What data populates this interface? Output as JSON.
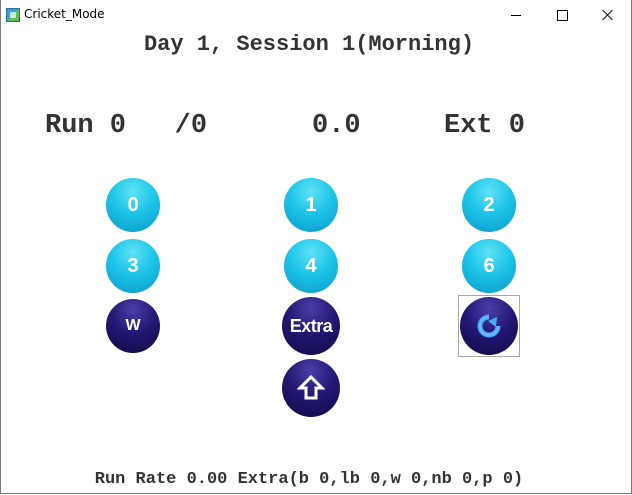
{
  "window": {
    "title": "Cricket_Mode",
    "icon": "app-icon"
  },
  "session": {
    "title": "Day 1, Session 1(Morning)"
  },
  "score": {
    "runs_label": "Run 0   /0",
    "overs_label": "0.0",
    "extras_label": "Ext 0"
  },
  "buttons": {
    "run_0": "0",
    "run_1": "1",
    "run_2": "2",
    "run_3": "3",
    "run_4": "4",
    "run_6": "6",
    "wicket": "W",
    "extra": "Extra",
    "undo_icon": "undo-icon",
    "upload_icon": "upload-icon"
  },
  "footer": {
    "text": "Run Rate 0.00 Extra(b 0,lb 0,w 0,nb 0,p 0)"
  },
  "colors": {
    "run_button": "#1cc4e8",
    "action_button": "#231873",
    "text": "#333333"
  }
}
